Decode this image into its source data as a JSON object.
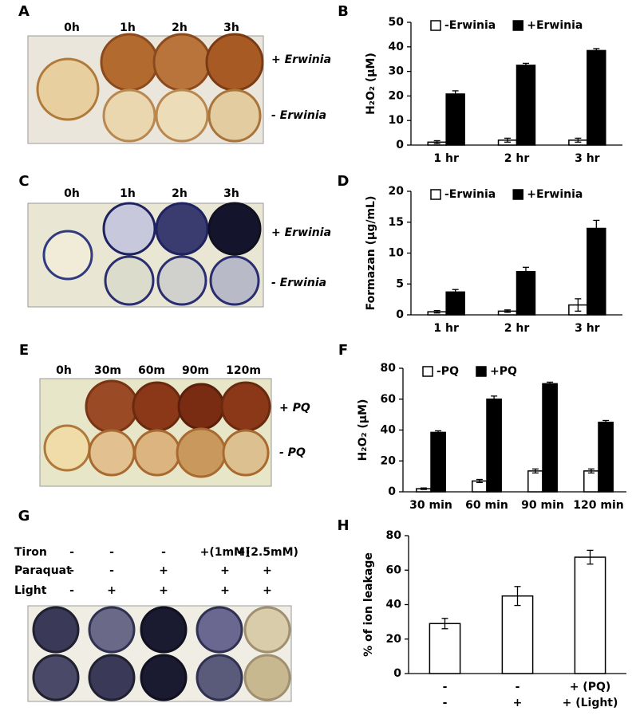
{
  "panels": [
    {
      "letter": "A",
      "times": [
        "0h",
        "1h",
        "2h",
        "3h"
      ],
      "rows": [
        "+ Erwinia",
        "- Erwinia"
      ]
    },
    {
      "letter": "C",
      "times": [
        "0h",
        "1h",
        "2h",
        "3h"
      ],
      "rows": [
        "+ Erwinia",
        "- Erwinia"
      ]
    },
    {
      "letter": "E",
      "times": [
        "0h",
        "30m",
        "60m",
        "90m",
        "120m"
      ],
      "rows": [
        "+ PQ",
        "- PQ"
      ]
    },
    {
      "letter": "G",
      "treatments": [
        {
          "name": "Tiron",
          "levels": [
            "-",
            "-",
            "-",
            "+(1mM)",
            "+(2.5mM)"
          ]
        },
        {
          "name": "Paraquat",
          "levels": [
            "-",
            "-",
            "+",
            "+",
            "+"
          ]
        },
        {
          "name": "Light",
          "levels": [
            "-",
            "+",
            "+",
            "+",
            "+"
          ]
        }
      ]
    }
  ],
  "chart_data": [
    {
      "type": "bar",
      "panel": "B",
      "ylabel": "H₂O₂ (µM)",
      "categories": [
        "1 hr",
        "2 hr",
        "3 hr"
      ],
      "ylim": [
        0,
        50
      ],
      "yticks": [
        0,
        10,
        20,
        30,
        40,
        50
      ],
      "legend": "upper left",
      "series": [
        {
          "name": "-Erwinia",
          "color": "#ffffff",
          "values": [
            1.2,
            2,
            2
          ],
          "errors": [
            0.6,
            0.8,
            0.8
          ]
        },
        {
          "name": "+Erwinia",
          "color": "#000000",
          "values": [
            20.8,
            32.5,
            38.5
          ],
          "errors": [
            1.3,
            0.8,
            0.8
          ]
        }
      ]
    },
    {
      "type": "bar",
      "panel": "D",
      "ylabel": "Formazan (µg/mL)",
      "categories": [
        "1 hr",
        "2 hr",
        "3 hr"
      ],
      "ylim": [
        0,
        20
      ],
      "yticks": [
        0,
        5,
        10,
        15,
        20
      ],
      "legend": "upper left",
      "series": [
        {
          "name": "-Erwinia",
          "color": "#ffffff",
          "values": [
            0.5,
            0.6,
            1.6
          ],
          "errors": [
            0.2,
            0.2,
            1.0
          ]
        },
        {
          "name": "+Erwinia",
          "color": "#000000",
          "values": [
            3.7,
            7.0,
            14
          ],
          "errors": [
            0.4,
            0.7,
            1.3
          ]
        }
      ]
    },
    {
      "type": "bar",
      "panel": "F",
      "ylabel": "H₂O₂ (µM)",
      "categories": [
        "30 min",
        "60 min",
        "90 min",
        "120 min"
      ],
      "ylim": [
        0,
        80
      ],
      "yticks": [
        0,
        20,
        40,
        60,
        80
      ],
      "legend": "upper left",
      "series": [
        {
          "name": "-PQ",
          "color": "#ffffff",
          "values": [
            2,
            7,
            13.5,
            13.5
          ],
          "errors": [
            0.5,
            1,
            1.3,
            1.3
          ]
        },
        {
          "name": "+PQ",
          "color": "#000000",
          "values": [
            38.5,
            60,
            70,
            45
          ],
          "errors": [
            1,
            2,
            1,
            1.2
          ]
        }
      ]
    },
    {
      "type": "bar",
      "panel": "H",
      "ylabel": "% of ion leakage",
      "categories": [
        "-",
        "-",
        "+ (PQ)"
      ],
      "categories_2": [
        "-",
        "+",
        "+ (Light)"
      ],
      "ylim": [
        0,
        80
      ],
      "yticks": [
        0,
        20,
        40,
        60,
        80
      ],
      "series": [
        {
          "color": "#ffffff",
          "values": [
            29,
            45,
            67.5
          ],
          "errors": [
            3,
            5.5,
            4
          ]
        }
      ]
    }
  ]
}
